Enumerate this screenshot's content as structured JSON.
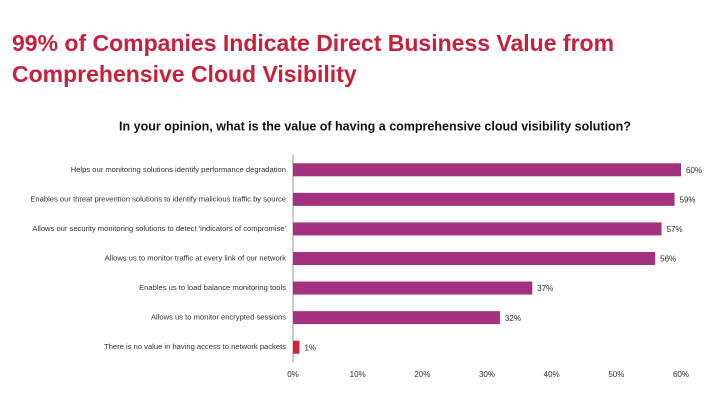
{
  "chart_data": {
    "type": "barh",
    "title": "99% of Companies Indicate Direct Business Value from Comprehensive Cloud Visibility",
    "subtitle": "In your opinion, what is the value of having a comprehensive cloud visibility solution?",
    "categories": [
      "Helps our  monitoring solutions identify performance degradation",
      "Enables our threat prevention solutions to identify malicious traffic by source",
      "Allows our security monitoring solutions to detect 'indicators of compromise'",
      "Allows us to monitor traffic at every link of our network",
      "Enables us to load balance monitoring tools",
      "Allows us to monitor encrypted sessions",
      "There is no value in having access to network packets"
    ],
    "values": [
      60,
      59,
      57,
      56,
      37,
      32,
      1
    ],
    "value_labels": [
      "60%",
      "59%",
      "57%",
      "56%",
      "37%",
      "32%",
      "1%"
    ],
    "colors": [
      "#a3317f",
      "#a3317f",
      "#a3317f",
      "#a3317f",
      "#a3317f",
      "#a3317f",
      "#d4203f"
    ],
    "xlim": [
      0,
      60
    ],
    "xticks": [
      {
        "value": 0,
        "label": "0%"
      },
      {
        "value": 10,
        "label": "10%"
      },
      {
        "value": 20,
        "label": "20%"
      },
      {
        "value": 30,
        "label": "30%"
      },
      {
        "value": 40,
        "label": "40%"
      },
      {
        "value": 50,
        "label": "50%"
      },
      {
        "value": 60,
        "label": "60%"
      }
    ],
    "grid": false
  }
}
